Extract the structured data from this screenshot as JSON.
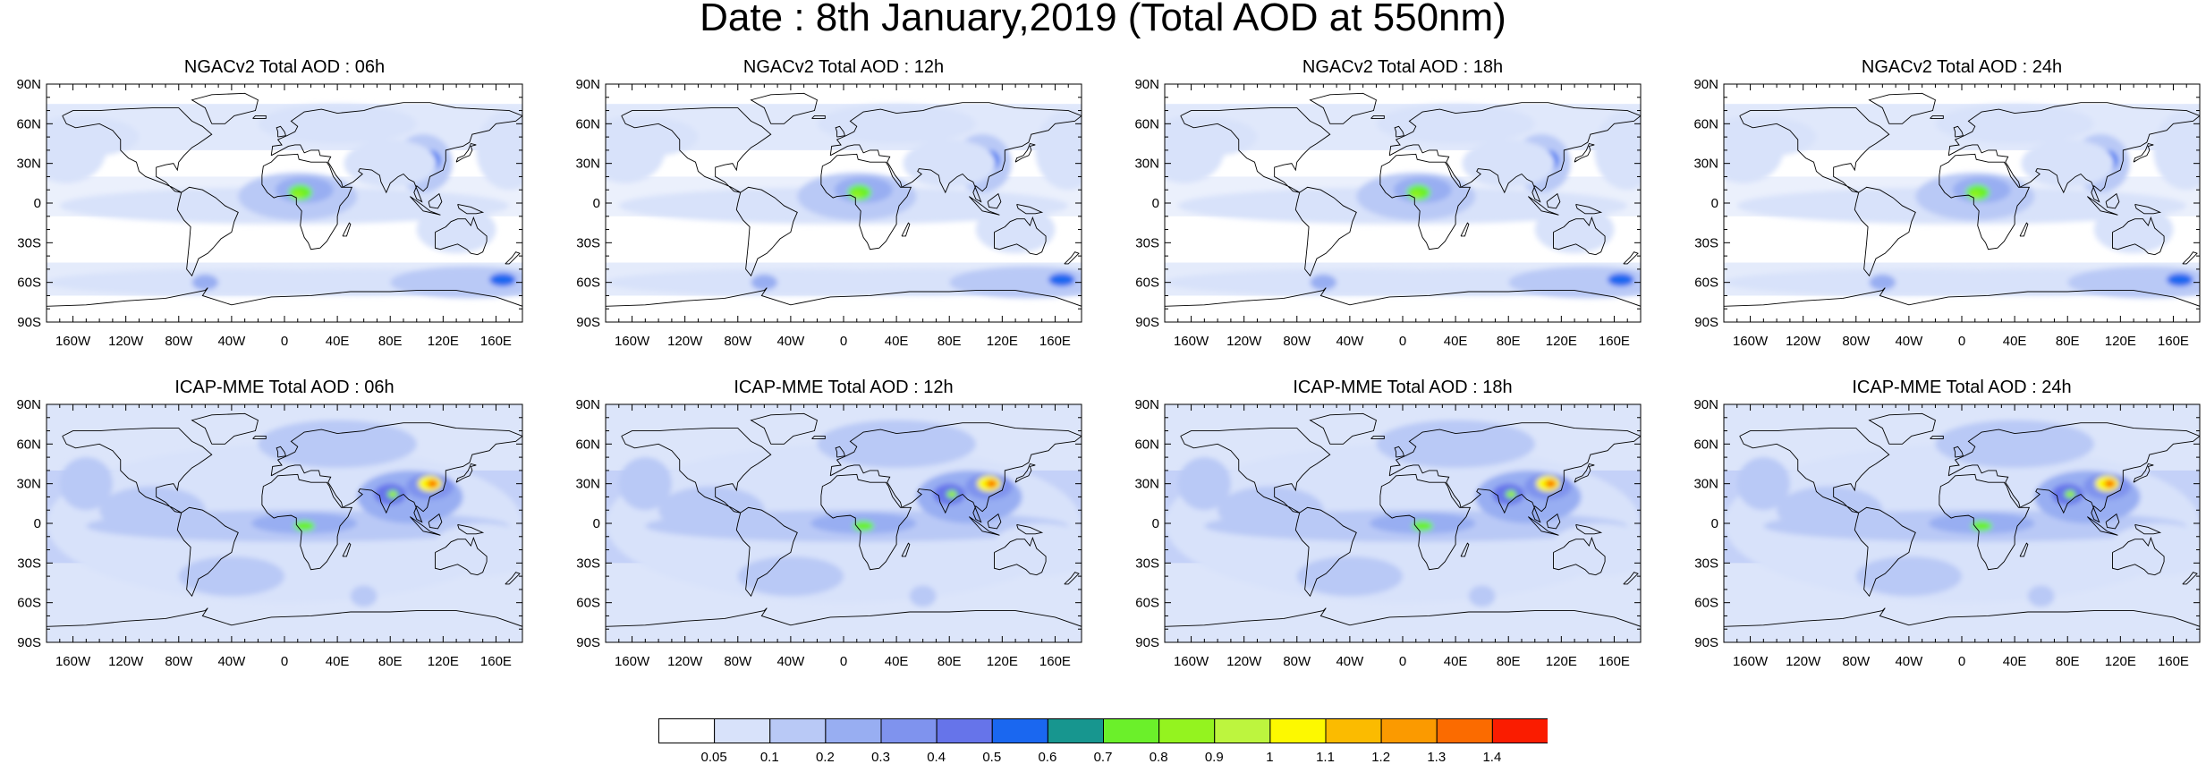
{
  "title": "Date : 8th January,2019 (Total AOD at 550nm)",
  "panels": [
    {
      "title": "NGACv2 Total AOD : 06h",
      "model": "NGACv2"
    },
    {
      "title": "NGACv2 Total AOD : 12h",
      "model": "NGACv2"
    },
    {
      "title": "NGACv2 Total AOD : 18h",
      "model": "NGACv2"
    },
    {
      "title": "NGACv2 Total AOD : 24h",
      "model": "NGACv2"
    },
    {
      "title": "ICAP-MME Total AOD : 06h",
      "model": "ICAP-MME"
    },
    {
      "title": "ICAP-MME Total AOD : 12h",
      "model": "ICAP-MME"
    },
    {
      "title": "ICAP-MME Total AOD : 18h",
      "model": "ICAP-MME"
    },
    {
      "title": "ICAP-MME Total AOD : 24h",
      "model": "ICAP-MME"
    }
  ],
  "axes": {
    "lat_ticks": [
      "90N",
      "60N",
      "30N",
      "0",
      "30S",
      "60S",
      "90S"
    ],
    "lon_ticks": [
      "160W",
      "120W",
      "80W",
      "40W",
      "0",
      "40E",
      "80E",
      "120E",
      "160E"
    ],
    "lon_tick_values": [
      -160,
      -120,
      -80,
      -40,
      0,
      40,
      80,
      120,
      160
    ],
    "lat_tick_values": [
      90,
      60,
      30,
      0,
      -30,
      -60,
      -90
    ]
  },
  "colorbar": {
    "labels": [
      "0.05",
      "0.1",
      "0.2",
      "0.3",
      "0.4",
      "0.5",
      "0.6",
      "0.7",
      "0.8",
      "0.9",
      "1",
      "1.1",
      "1.2",
      "1.3",
      "1.4"
    ],
    "colors": [
      "#ffffff",
      "#d8e2fa",
      "#b9c9f6",
      "#98aef2",
      "#7f93ee",
      "#6674ea",
      "#1a67f0",
      "#17968f",
      "#6bf02a",
      "#94f31f",
      "#bdf53e",
      "#fdf900",
      "#fbbb00",
      "#fb9a00",
      "#fb6b00",
      "#fa1c00"
    ]
  }
}
